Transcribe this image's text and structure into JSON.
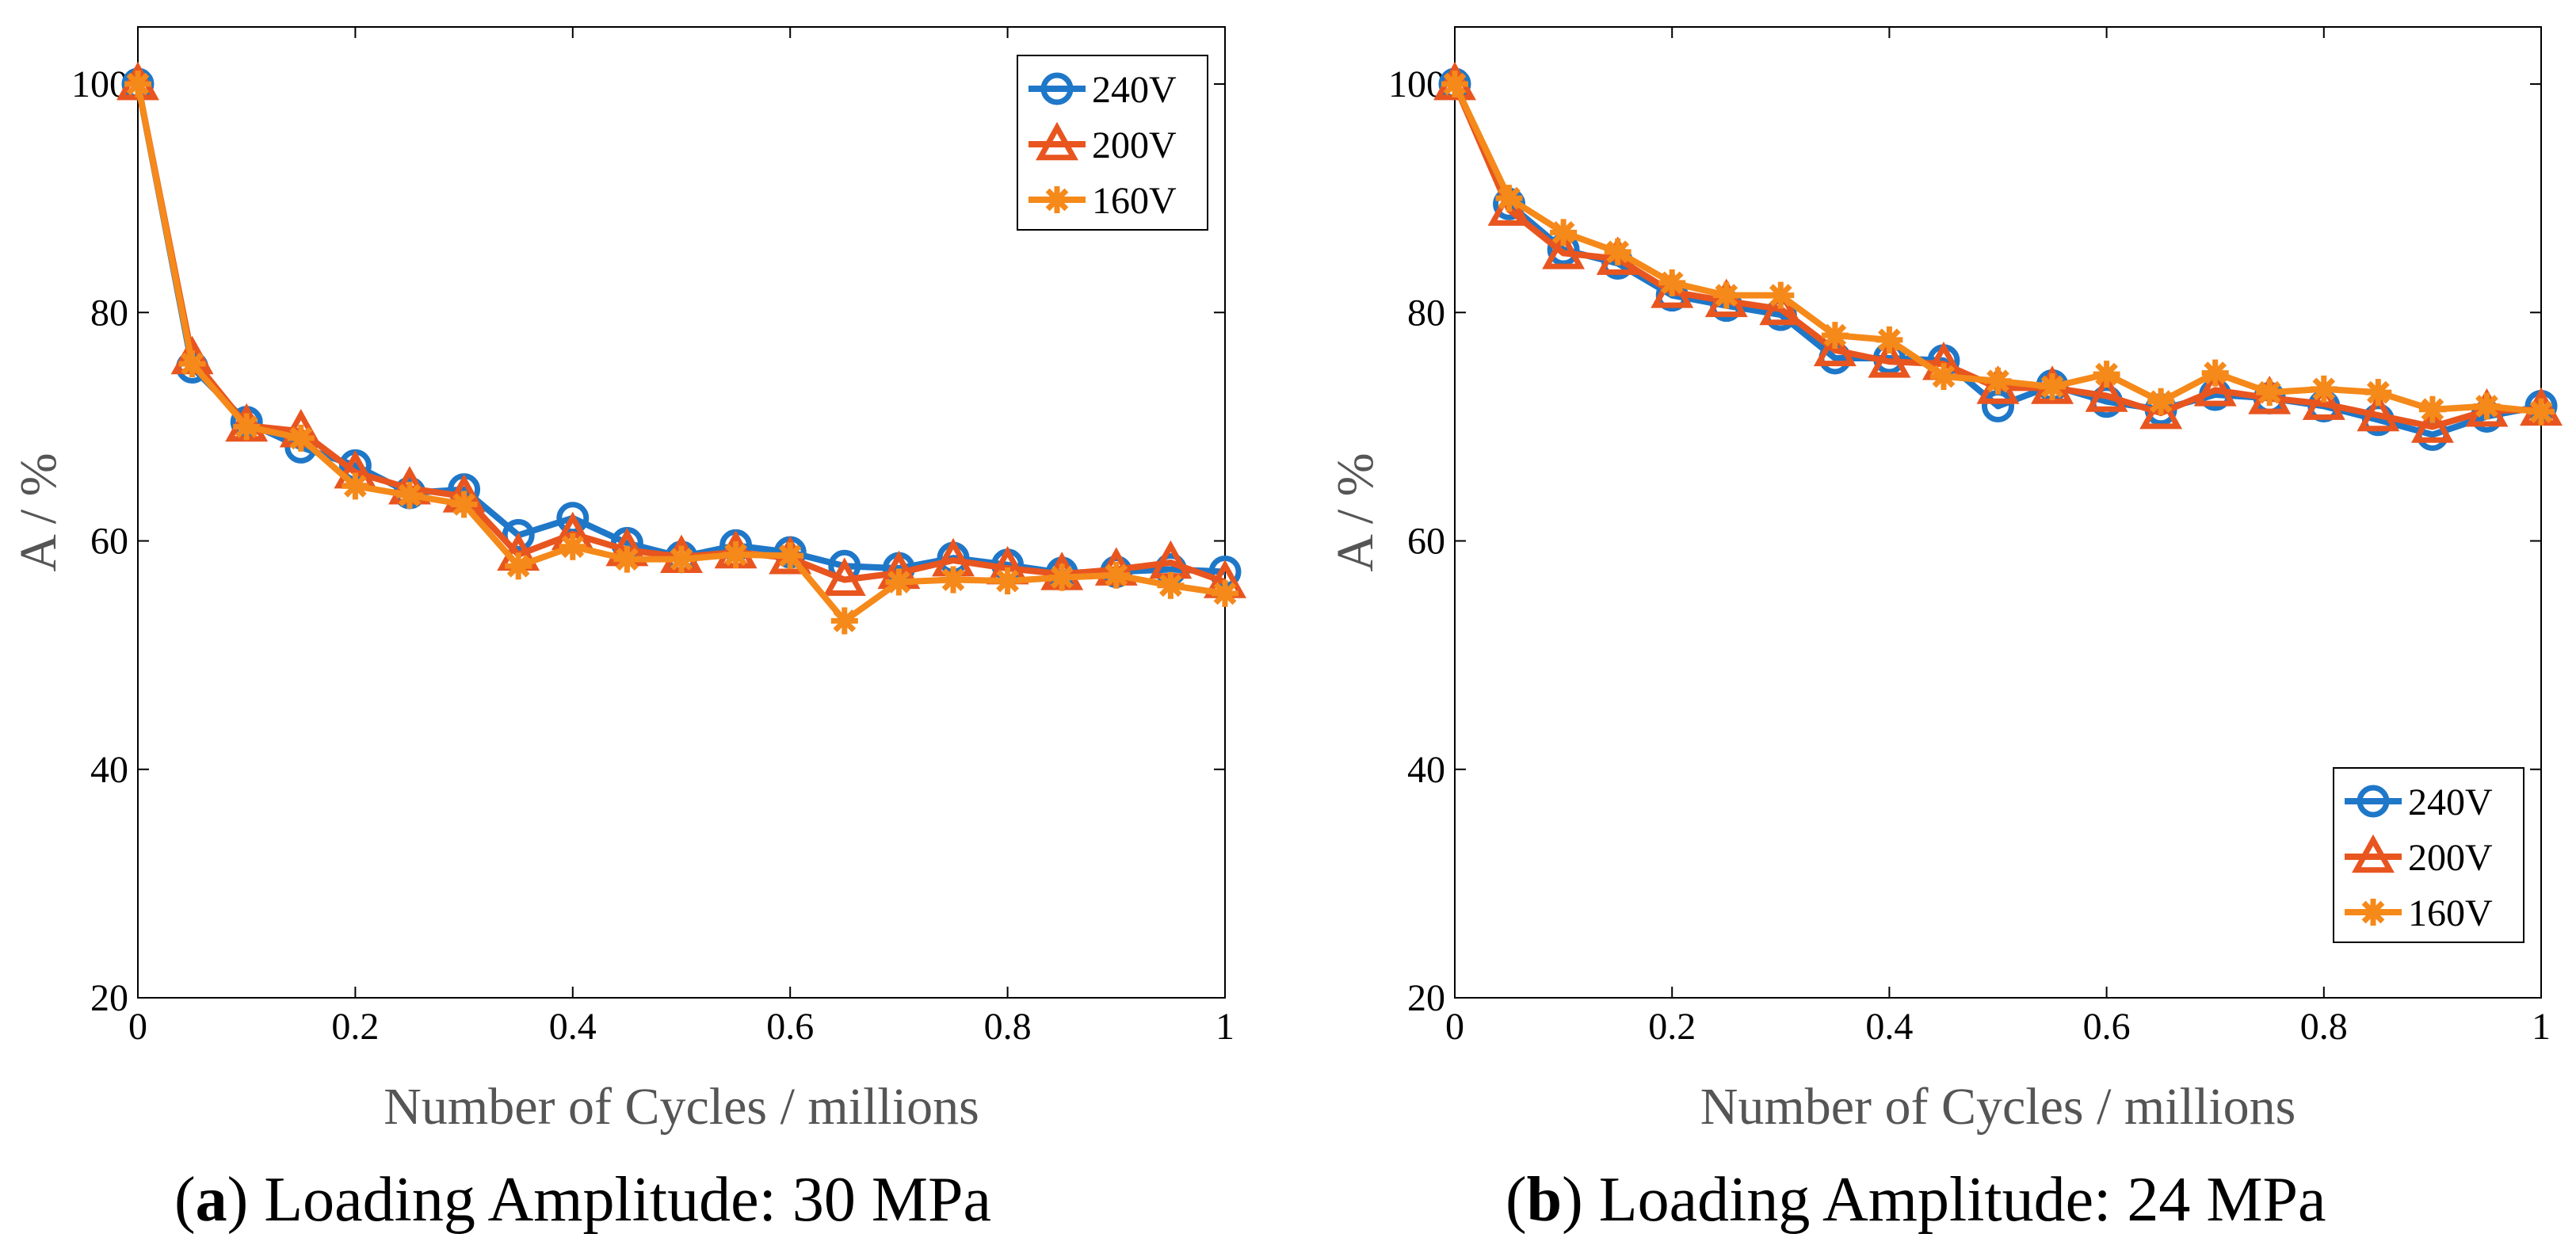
{
  "colors": {
    "s240": "#1f77c8",
    "s200": "#e8551f",
    "s160": "#f5891a",
    "axis": "#000000"
  },
  "chart_data": [
    {
      "type": "line",
      "panel_letter": "a",
      "caption_text": ") Loading Amplitude: 30 MPa",
      "caption_open": "(",
      "xlabel": "Number of Cycles / millions",
      "ylabel": "A / %",
      "xlim": [
        0,
        1
      ],
      "ylim": [
        20,
        105
      ],
      "xticks": [
        0,
        0.2,
        0.4,
        0.6,
        0.8,
        1
      ],
      "xtick_labels": [
        "0",
        "0.2",
        "0.4",
        "0.6",
        "0.8",
        "1"
      ],
      "yticks": [
        20,
        40,
        60,
        80,
        100
      ],
      "ytick_labels": [
        "20",
        "40",
        "60",
        "80",
        "100"
      ],
      "legend_position": "top-right",
      "x": [
        0,
        0.05,
        0.1,
        0.15,
        0.2,
        0.25,
        0.3,
        0.35,
        0.4,
        0.45,
        0.5,
        0.55,
        0.6,
        0.65,
        0.7,
        0.75,
        0.8,
        0.85,
        0.9,
        0.95,
        1
      ],
      "series": [
        {
          "name": "240V",
          "marker": "circle",
          "color": "#1f77c8",
          "values": [
            100,
            75.2,
            70.4,
            68.2,
            66.6,
            64.2,
            64.5,
            60.5,
            62.0,
            59.8,
            58.6,
            59.6,
            59.0,
            57.8,
            57.6,
            58.5,
            57.9,
            57.2,
            57.3,
            57.5,
            57.3
          ]
        },
        {
          "name": "200V",
          "marker": "triangle",
          "color": "#e8551f",
          "values": [
            100,
            76.0,
            70.1,
            69.6,
            66.0,
            64.6,
            63.9,
            58.8,
            60.6,
            59.2,
            58.6,
            59.0,
            58.5,
            56.6,
            57.2,
            58.3,
            57.6,
            57.1,
            57.5,
            58.1,
            56.4
          ]
        },
        {
          "name": "160V",
          "marker": "asterisk",
          "color": "#f5891a",
          "values": [
            100,
            75.5,
            70.0,
            69.0,
            64.8,
            64.0,
            63.2,
            57.8,
            59.5,
            58.4,
            58.4,
            58.8,
            58.7,
            53.0,
            56.4,
            56.6,
            56.5,
            56.8,
            57.0,
            56.1,
            55.4
          ]
        }
      ]
    },
    {
      "type": "line",
      "panel_letter": "b",
      "caption_text": ") Loading Amplitude: 24 MPa",
      "caption_open": "(",
      "xlabel": "Number of Cycles / millions",
      "ylabel": "A / %",
      "xlim": [
        0,
        1
      ],
      "ylim": [
        20,
        105
      ],
      "xticks": [
        0,
        0.2,
        0.4,
        0.6,
        0.8,
        1
      ],
      "xtick_labels": [
        "0",
        "0.2",
        "0.4",
        "0.6",
        "0.8",
        "1"
      ],
      "yticks": [
        20,
        40,
        60,
        80,
        100
      ],
      "ytick_labels": [
        "20",
        "40",
        "60",
        "80",
        "100"
      ],
      "legend_position": "bottom-right",
      "x": [
        0,
        0.05,
        0.1,
        0.15,
        0.2,
        0.25,
        0.3,
        0.35,
        0.4,
        0.45,
        0.5,
        0.55,
        0.6,
        0.65,
        0.7,
        0.75,
        0.8,
        0.85,
        0.9,
        0.95,
        1
      ],
      "series": [
        {
          "name": "240V",
          "marker": "circle",
          "color": "#1f77c8",
          "values": [
            100,
            89.5,
            85.5,
            84.3,
            81.5,
            80.6,
            79.8,
            76.0,
            76.0,
            75.8,
            71.8,
            73.6,
            72.2,
            71.5,
            72.8,
            72.5,
            71.8,
            70.6,
            69.3,
            70.9,
            71.8
          ]
        },
        {
          "name": "200V",
          "marker": "triangle",
          "color": "#e8551f",
          "values": [
            100,
            89.0,
            85.2,
            84.7,
            81.8,
            81.0,
            80.3,
            76.7,
            75.7,
            75.5,
            73.4,
            73.4,
            72.7,
            71.2,
            73.2,
            72.5,
            72.0,
            71.0,
            70.0,
            71.4,
            71.5
          ]
        },
        {
          "name": "160V",
          "marker": "asterisk",
          "color": "#f5891a",
          "values": [
            100,
            90.0,
            87.0,
            85.3,
            82.6,
            81.5,
            81.5,
            78.0,
            77.6,
            74.4,
            74.0,
            73.5,
            74.6,
            72.2,
            74.7,
            73.0,
            73.3,
            73.0,
            71.5,
            71.8,
            71.3
          ]
        }
      ]
    }
  ]
}
